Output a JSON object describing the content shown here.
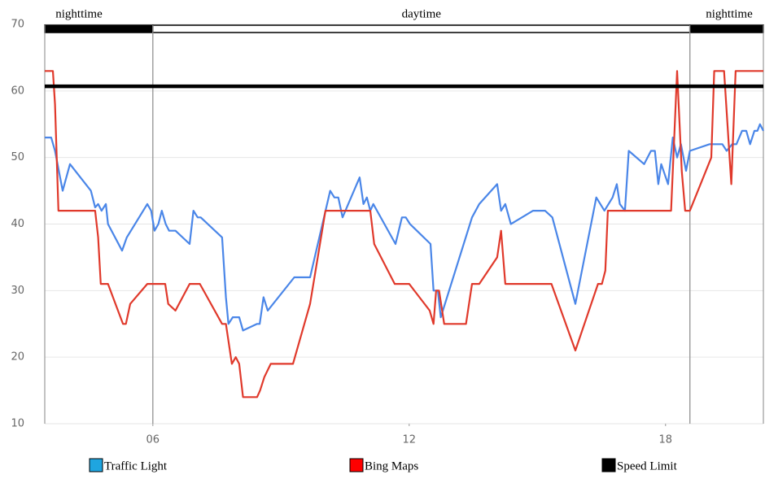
{
  "chart_data": {
    "type": "line",
    "xlim": [
      3.47,
      20.29
    ],
    "xticks": [
      {
        "value": 6,
        "label": "06"
      },
      {
        "value": 12,
        "label": "12"
      },
      {
        "value": 18,
        "label": "18"
      }
    ],
    "ylim": [
      10,
      70
    ],
    "yticks": [
      10,
      20,
      30,
      40,
      50,
      60,
      70
    ],
    "grid": true,
    "legend": "bottom",
    "periods": [
      {
        "label": "nighttime",
        "start": 3.47,
        "end": 6,
        "color": "#000000"
      },
      {
        "label": "daytime",
        "start": 6,
        "end": 18.57,
        "color": "#ffffff"
      },
      {
        "label": "nighttime",
        "start": 18.57,
        "end": 20.29,
        "color": "#000000"
      }
    ],
    "series": [
      {
        "name": "Traffic Light",
        "color": "#4a86e8",
        "legend_color": "#1fa5e0",
        "x": [
          3.47,
          3.62,
          3.71,
          3.89,
          4.06,
          4.55,
          4.65,
          4.72,
          4.8,
          4.9,
          4.95,
          5.28,
          5.39,
          5.87,
          5.96,
          6.04,
          6.13,
          6.21,
          6.3,
          6.38,
          6.53,
          6.86,
          6.95,
          7.05,
          7.12,
          7.62,
          7.71,
          7.77,
          7.87,
          8.02,
          8.11,
          8.44,
          8.5,
          8.59,
          8.69,
          9.31,
          9.68,
          10.15,
          10.25,
          10.34,
          10.44,
          10.84,
          10.93,
          11.01,
          11.09,
          11.16,
          11.68,
          11.83,
          11.92,
          12.02,
          12.5,
          12.57,
          12.67,
          12.74,
          13.47,
          13.64,
          14.06,
          14.15,
          14.25,
          14.38,
          14.9,
          15.18,
          15.35,
          15.89,
          16.38,
          16.57,
          16.76,
          16.86,
          16.93,
          17.05,
          17.14,
          17.5,
          17.66,
          17.75,
          17.83,
          17.9,
          18.06,
          18.17,
          18.27,
          18.36,
          18.48,
          18.57,
          19.03,
          19.33,
          19.43,
          19.56,
          19.66,
          19.79,
          19.89,
          19.98,
          20.08,
          20.15,
          20.21,
          20.29
        ],
        "values": [
          53,
          53,
          51,
          45,
          49,
          45,
          42.5,
          43,
          42,
          43,
          40,
          36,
          38,
          43,
          42,
          39,
          40,
          42,
          40,
          39,
          39,
          37,
          42,
          41,
          41,
          38,
          29,
          25,
          26,
          26,
          24,
          25,
          25,
          29,
          27,
          32,
          32,
          45,
          44,
          44,
          41,
          47,
          43,
          44,
          42,
          43,
          37,
          41,
          41,
          40,
          37,
          30,
          30,
          26,
          41,
          43,
          46,
          42,
          43,
          40,
          42,
          42,
          41,
          28,
          44,
          42,
          44,
          46,
          43,
          42,
          51,
          49,
          51,
          51,
          46,
          49,
          46,
          53,
          50,
          52,
          48,
          51,
          52,
          52,
          51,
          52,
          52,
          54,
          54,
          52,
          54,
          54,
          55,
          54
        ]
      },
      {
        "name": "Bing Maps",
        "color": "#e0392b",
        "legend_color": "#ff0000",
        "x": [
          3.47,
          3.66,
          3.71,
          3.79,
          4.65,
          4.72,
          4.78,
          4.95,
          5.3,
          5.37,
          5.47,
          5.87,
          6.29,
          6.36,
          6.53,
          6.86,
          7.1,
          7.62,
          7.71,
          7.85,
          7.94,
          8.02,
          8.11,
          8.44,
          8.51,
          8.61,
          8.76,
          9.28,
          9.68,
          10.04,
          11.09,
          11.18,
          11.66,
          12.0,
          12.48,
          12.57,
          12.63,
          12.7,
          12.82,
          13.33,
          13.47,
          13.64,
          14.06,
          14.15,
          14.25,
          15.33,
          15.89,
          16.42,
          16.51,
          16.59,
          16.65,
          18.13,
          18.27,
          18.38,
          18.46,
          18.57,
          19.07,
          19.14,
          19.37,
          19.54,
          19.64,
          20.29
        ],
        "values": [
          63,
          63,
          58,
          42,
          42,
          38,
          31,
          31,
          25,
          25,
          28,
          31,
          31,
          28,
          27,
          31,
          31,
          25,
          25,
          19,
          20,
          19,
          14,
          14,
          15,
          17,
          19,
          19,
          28,
          42,
          42,
          37,
          31,
          31,
          27,
          25,
          30,
          30,
          25,
          25,
          31,
          31,
          35,
          39,
          31,
          31,
          21,
          31,
          31,
          33,
          42,
          42,
          63,
          48,
          42,
          42,
          50,
          63,
          63,
          46,
          63,
          63
        ]
      },
      {
        "name": "Speed Limit",
        "color": "#000000",
        "legend_color": "#000000",
        "x": [
          3.47,
          20.29
        ],
        "values": [
          60.7,
          60.7
        ]
      }
    ]
  }
}
